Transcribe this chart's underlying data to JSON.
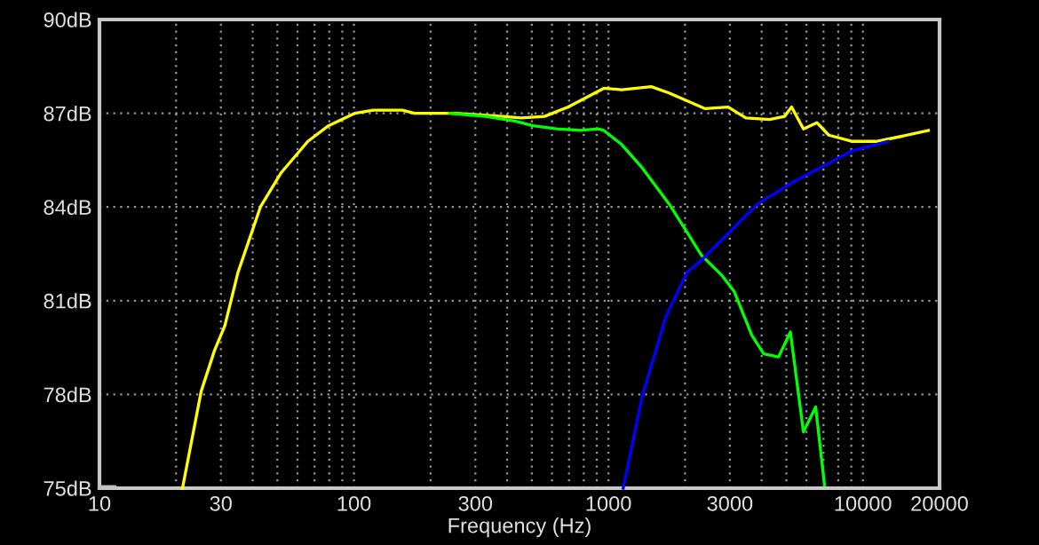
{
  "chart_data": {
    "type": "line",
    "xlabel": "Frequency (Hz)",
    "log": "x",
    "grid": true,
    "marker": "none",
    "line_style": "solid",
    "xlim": [
      10,
      20000
    ],
    "ylim": [
      75,
      90
    ],
    "xticks": [
      10,
      {
        "value": 20,
        "label": null
      },
      30,
      {
        "value": 40,
        "label": null
      },
      {
        "value": 50,
        "label": null
      },
      {
        "value": 60,
        "label": null
      },
      {
        "value": 70,
        "label": null
      },
      {
        "value": 80,
        "label": null
      },
      {
        "value": 90,
        "label": null
      },
      100,
      {
        "value": 200,
        "label": null
      },
      300,
      {
        "value": 400,
        "label": null
      },
      {
        "value": 500,
        "label": null
      },
      {
        "value": 600,
        "label": null
      },
      {
        "value": 700,
        "label": null
      },
      {
        "value": 800,
        "label": null
      },
      {
        "value": 900,
        "label": null
      },
      1000,
      {
        "value": 2000,
        "label": null
      },
      3000,
      {
        "value": 4000,
        "label": null
      },
      {
        "value": 5000,
        "label": null
      },
      {
        "value": 6000,
        "label": null
      },
      {
        "value": 7000,
        "label": null
      },
      {
        "value": 8000,
        "label": null
      },
      {
        "value": 9000,
        "label": null
      },
      10000,
      20000
    ],
    "yticks": [
      {
        "value": 75,
        "label": "75dB"
      },
      {
        "value": 78,
        "label": "78dB"
      },
      {
        "value": 81,
        "label": "81dB"
      },
      {
        "value": 84,
        "label": "84dB"
      },
      {
        "value": 87,
        "label": "87dB"
      },
      {
        "value": 90,
        "label": "90dB"
      }
    ],
    "series": [
      {
        "color": "#ffff00",
        "x": [
          21.2,
          25.1,
          28.3,
          31.1,
          35,
          42.9,
          51.8,
          65.9,
          79.4,
          101,
          119,
          155,
          173,
          251,
          385,
          453,
          561,
          695,
          817,
          959,
          1127,
          1473,
          1730,
          2034,
          2389,
          2954,
          3470,
          4297,
          4918,
          5245,
          5838,
          6594,
          7341,
          9099,
          11272,
          13960,
          18070
        ],
        "values": [
          75.0,
          78.1,
          79.4,
          80.2,
          81.9,
          84.0,
          85.1,
          86.1,
          86.6,
          87.0,
          87.1,
          87.1,
          87.0,
          87.0,
          86.9,
          86.85,
          86.9,
          87.2,
          87.5,
          87.8,
          87.75,
          87.85,
          87.65,
          87.4,
          87.15,
          87.2,
          86.85,
          86.8,
          86.9,
          87.2,
          86.5,
          86.7,
          86.3,
          86.1,
          86.1,
          86.25,
          86.45
        ]
      },
      {
        "color": "#00ff00",
        "x": [
          238,
          328,
          429,
          505,
          625,
          775,
          910,
          959,
          1127,
          1358,
          1730,
          2034,
          2323,
          2800,
          3118,
          3658,
          4073,
          4660,
          5188,
          5838,
          6520,
          7063
        ],
        "values": [
          87.0,
          86.9,
          86.75,
          86.6,
          86.5,
          86.45,
          86.5,
          86.45,
          86.0,
          85.25,
          84.1,
          83.2,
          82.45,
          81.8,
          81.3,
          79.9,
          79.3,
          79.2,
          80.0,
          76.8,
          77.6,
          75.1
        ]
      },
      {
        "color": "#0000ff",
        "x": [
          1143,
          1358,
          1683,
          2034,
          2323,
          2954,
          3861,
          5321,
          6771,
          9099,
          12540
        ],
        "values": [
          75.0,
          77.95,
          80.5,
          81.9,
          82.3,
          83.15,
          84.1,
          84.8,
          85.25,
          85.8,
          86.1
        ]
      },
      {
        "color": "#c0c0c0",
        "x": [
          10,
          11.5
        ],
        "values": [
          75.05,
          75.05
        ]
      }
    ]
  }
}
